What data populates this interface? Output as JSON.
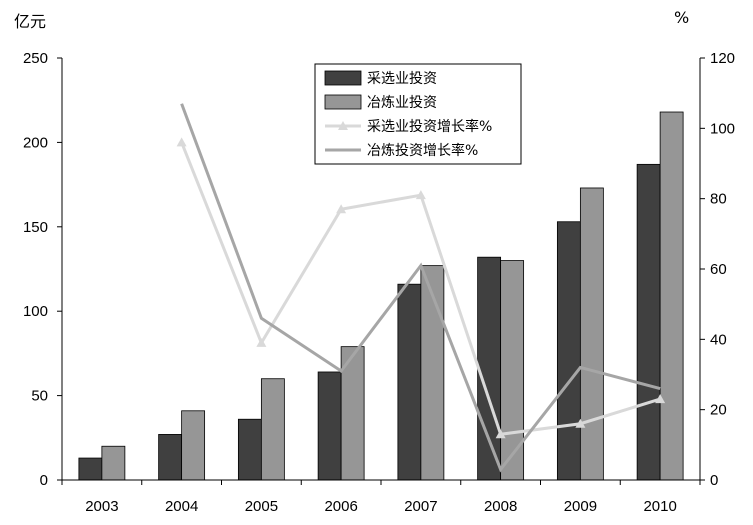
{
  "chart_data": {
    "type": "bar",
    "categories": [
      "2003",
      "2004",
      "2005",
      "2006",
      "2007",
      "2008",
      "2009",
      "2010"
    ],
    "left_axis": {
      "unit_label": "亿元",
      "ylim": [
        0,
        250
      ],
      "ticks": [
        0,
        50,
        100,
        150,
        200,
        250
      ]
    },
    "right_axis": {
      "unit_label": "%",
      "ylim": [
        0,
        120
      ],
      "ticks": [
        0,
        20,
        40,
        60,
        80,
        100,
        120
      ]
    },
    "series": [
      {
        "name": "采选业投资",
        "kind": "bar",
        "axis": "left",
        "color": "#404040",
        "values": [
          13,
          27,
          36,
          64,
          116,
          132,
          153,
          187
        ]
      },
      {
        "name": "冶炼业投资",
        "kind": "bar",
        "axis": "left",
        "color": "#969696",
        "values": [
          20,
          41,
          60,
          79,
          127,
          130,
          173,
          218
        ]
      },
      {
        "name": "采选业投资增长率%",
        "kind": "line",
        "axis": "right",
        "color": "#d9d9d9",
        "marker": "triangle",
        "values": [
          null,
          96,
          39,
          77,
          81,
          13,
          16,
          23
        ]
      },
      {
        "name": "冶炼投资增长率%",
        "kind": "line",
        "axis": "right",
        "color": "#a6a6a6",
        "marker": "none",
        "values": [
          null,
          107,
          46,
          31,
          61,
          3,
          32,
          26
        ]
      }
    ],
    "legend_position": "top-center",
    "grid": false
  }
}
